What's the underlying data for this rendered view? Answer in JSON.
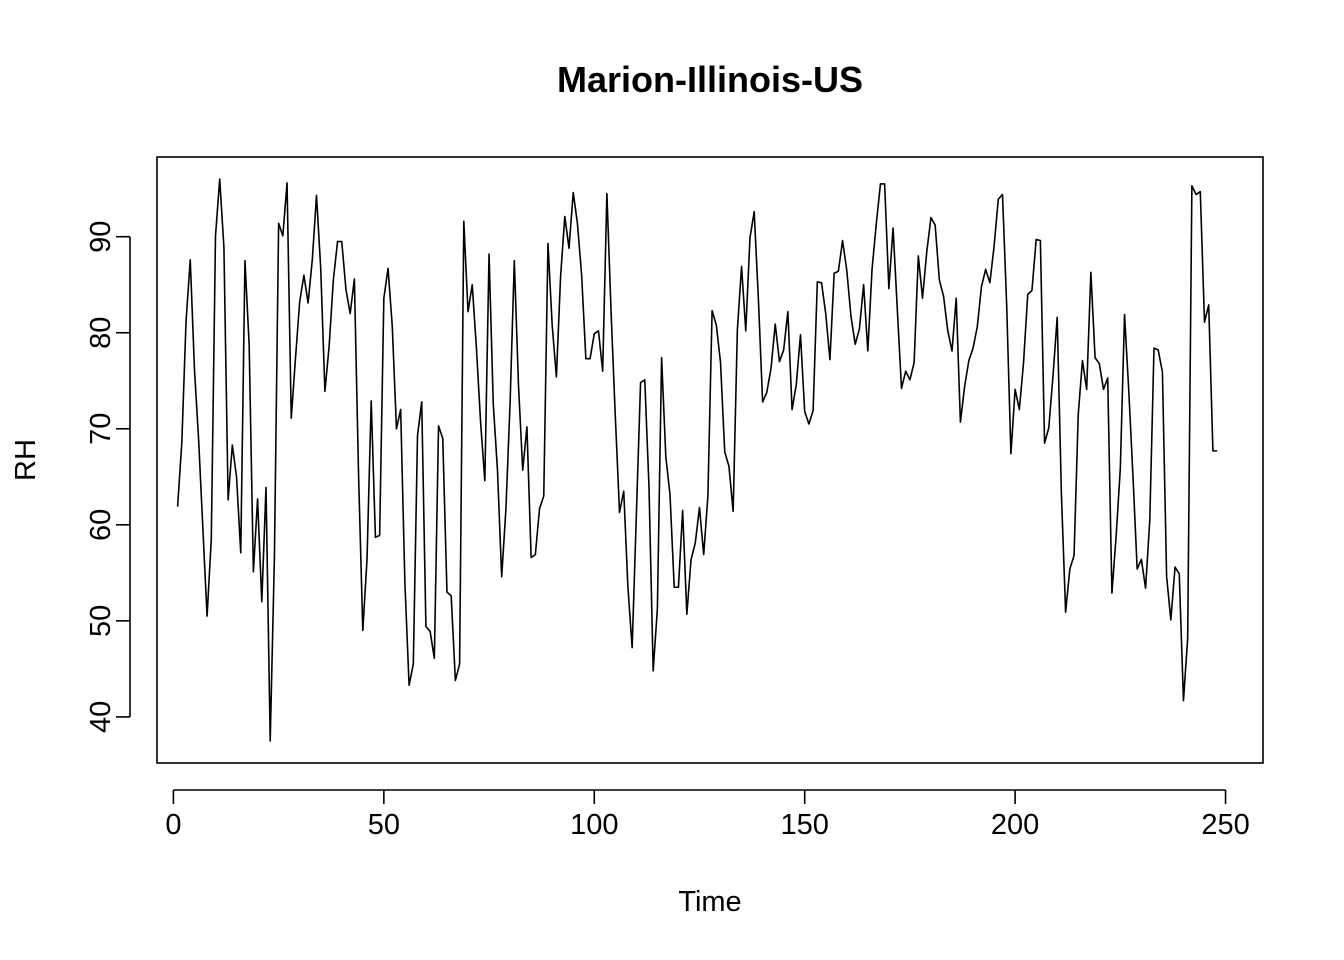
{
  "chart_data": {
    "type": "line",
    "title": "Marion-Illinois-US",
    "xlabel": "Time",
    "ylabel": "RH",
    "xlim": [
      -3.9,
      258.9
    ],
    "ylim": [
      35.2,
      98.3
    ],
    "xticks": [
      0,
      50,
      100,
      150,
      200,
      250
    ],
    "yticks": [
      40,
      50,
      60,
      70,
      80,
      90
    ],
    "grid": false,
    "line_color": "#000000",
    "y": [
      61.9,
      68.6,
      81.2,
      87.6,
      76.2,
      68.8,
      59.6,
      50.5,
      58.5,
      90.1,
      96.0,
      88.9,
      62.6,
      68.3,
      65.0,
      57.1,
      87.5,
      78.7,
      55.1,
      62.7,
      52.0,
      63.9,
      37.5,
      56.7,
      91.4,
      90.1,
      95.6,
      71.1,
      77.3,
      83.2,
      86.0,
      83.1,
      87.6,
      94.3,
      86.7,
      73.9,
      78.6,
      85.5,
      89.5,
      89.5,
      84.5,
      82.0,
      85.6,
      65.1,
      49.0,
      56.4,
      72.9,
      58.7,
      58.9,
      83.6,
      86.7,
      80.7,
      70.0,
      72.0,
      54.0,
      43.3,
      45.5,
      69.3,
      72.8,
      49.4,
      48.9,
      46.1,
      70.3,
      69.0,
      53.0,
      52.6,
      43.8,
      45.5,
      91.6,
      82.2,
      85.0,
      78.4,
      70.6,
      64.6,
      88.2,
      72.6,
      65.7,
      54.6,
      61.6,
      72.7,
      87.5,
      74.5,
      65.7,
      70.2,
      56.6,
      56.9,
      61.7,
      63.0,
      89.3,
      80.8,
      75.4,
      85.9,
      92.1,
      88.8,
      94.6,
      91.4,
      86.0,
      77.3,
      77.3,
      79.9,
      80.2,
      76.0,
      94.5,
      82.1,
      71.3,
      61.3,
      63.5,
      53.5,
      47.2,
      61.0,
      74.8,
      75.1,
      64.0,
      44.8,
      51.3,
      77.4,
      67.1,
      63.1,
      53.5,
      53.5,
      61.5,
      50.7,
      56.4,
      58.1,
      61.8,
      56.9,
      63.0,
      82.3,
      80.8,
      76.9,
      67.6,
      66.1,
      61.4,
      80.3,
      86.9,
      80.2,
      89.9,
      92.6,
      83.5,
      72.8,
      73.8,
      76.3,
      80.9,
      77.0,
      78.2,
      82.2,
      72.0,
      74.6,
      79.8,
      71.8,
      70.5,
      71.9,
      85.3,
      85.2,
      82.0,
      77.2,
      86.2,
      86.4,
      89.6,
      86.5,
      81.7,
      78.8,
      80.4,
      85.0,
      78.1,
      86.6,
      91.3,
      95.5,
      95.5,
      84.6,
      90.9,
      82.5,
      74.2,
      76.0,
      75.1,
      76.9,
      88.0,
      83.6,
      88.4,
      92.0,
      91.2,
      85.5,
      83.8,
      80.2,
      78.1,
      83.6,
      70.7,
      74.4,
      77.1,
      78.4,
      80.6,
      84.8,
      86.6,
      85.2,
      89.0,
      93.9,
      94.4,
      82.8,
      67.4,
      74.1,
      72.0,
      76.9,
      84.0,
      84.4,
      89.7,
      89.6,
      68.5,
      70.1,
      75.5,
      81.6,
      63.2,
      50.9,
      55.4,
      56.8,
      71.5,
      77.1,
      74.1,
      86.3,
      77.4,
      76.8,
      74.1,
      75.3,
      52.9,
      58.8,
      65.9,
      81.9,
      74.0,
      65.1,
      55.4,
      56.4,
      53.4,
      60.5,
      78.4,
      78.2,
      75.9,
      54.6,
      50.1,
      55.6,
      54.9,
      41.7,
      48.2,
      95.3,
      94.4,
      94.7,
      81.1,
      82.9,
      67.7,
      67.7
    ]
  }
}
